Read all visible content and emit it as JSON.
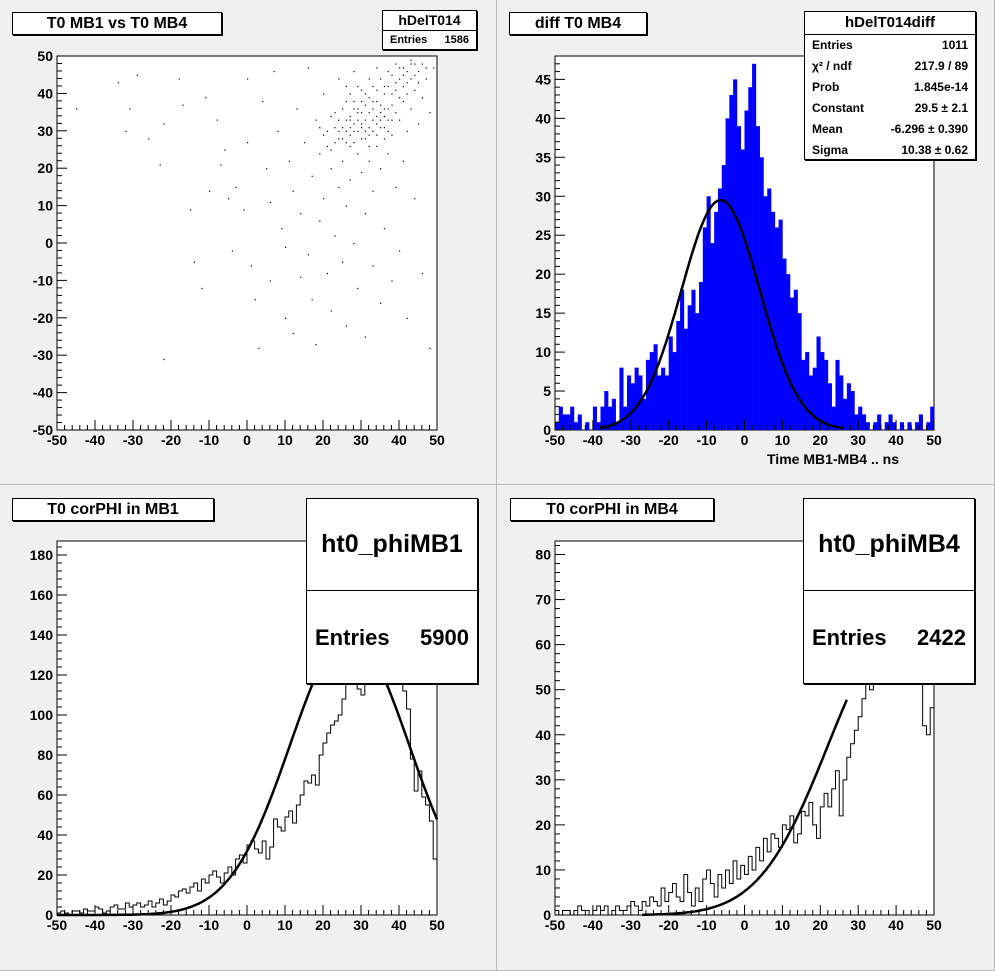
{
  "pads": [
    {
      "title": "T0 MB1 vs T0 MB4",
      "stats": {
        "name": "hDelT014",
        "rows": [
          {
            "label": "Entries",
            "value": "1586"
          }
        ]
      }
    },
    {
      "title": "diff T0 MB4",
      "xlabel": "Time MB1-MB4  ..  ns",
      "stats": {
        "name": "hDelT014diff",
        "rows": [
          {
            "label": "Entries",
            "value": "1011"
          },
          {
            "label": "χ² / ndf",
            "value": "217.9 / 89"
          },
          {
            "label": "Prob",
            "value": "1.845e-14"
          },
          {
            "label": "Constant",
            "value": "29.5 ± 2.1"
          },
          {
            "label": "Mean",
            "value": "-6.296 ± 0.390"
          },
          {
            "label": "Sigma",
            "value": "10.38 ± 0.62"
          }
        ]
      }
    },
    {
      "title": "T0 corPHI in MB1",
      "stats": {
        "name": "ht0_phiMB1",
        "rows": [
          {
            "label": "Entries",
            "value": "5900"
          }
        ]
      }
    },
    {
      "title": "T0 corPHI in MB4",
      "stats": {
        "name": "ht0_phiMB4",
        "rows": [
          {
            "label": "Entries",
            "value": "2422"
          }
        ]
      }
    }
  ],
  "colors": {
    "pad_bg": "#f0f0f0",
    "frame_bg": "#ffffff",
    "hist_fill": "#0000ff",
    "line": "#000000"
  },
  "chart_data": [
    {
      "type": "scatter",
      "title": "T0 MB1 vs T0 MB4",
      "xlim": [
        -50,
        50
      ],
      "ylim": [
        -50,
        50
      ],
      "xticks": [
        -50,
        -40,
        -30,
        -20,
        -10,
        0,
        10,
        20,
        30,
        40,
        50
      ],
      "yticks": [
        -50,
        -40,
        -30,
        -20,
        -10,
        0,
        10,
        20,
        30,
        40,
        50
      ],
      "entries": 1586,
      "points": [
        [
          -45,
          36
        ],
        [
          -34,
          43
        ],
        [
          -31,
          36
        ],
        [
          -32,
          30
        ],
        [
          -29,
          45
        ],
        [
          -26,
          28
        ],
        [
          -23,
          21
        ],
        [
          -22,
          32
        ],
        [
          -22,
          -31
        ],
        [
          -18,
          44
        ],
        [
          -17,
          37
        ],
        [
          -15,
          9
        ],
        [
          -14,
          -5
        ],
        [
          -12,
          -12
        ],
        [
          -11,
          39
        ],
        [
          -10,
          14
        ],
        [
          -8,
          33
        ],
        [
          -7,
          21
        ],
        [
          -6,
          25
        ],
        [
          -5,
          12
        ],
        [
          -4,
          -2
        ],
        [
          -3,
          15
        ],
        [
          -1,
          9
        ],
        [
          0,
          44
        ],
        [
          0,
          27
        ],
        [
          1,
          -6
        ],
        [
          2,
          -15
        ],
        [
          3,
          -28
        ],
        [
          4,
          38
        ],
        [
          5,
          20
        ],
        [
          6,
          11
        ],
        [
          6,
          -10
        ],
        [
          7,
          46
        ],
        [
          8,
          30
        ],
        [
          9,
          4
        ],
        [
          10,
          -1
        ],
        [
          10,
          -20
        ],
        [
          11,
          22
        ],
        [
          12,
          14
        ],
        [
          12,
          -24
        ],
        [
          13,
          36
        ],
        [
          14,
          8
        ],
        [
          14,
          -9
        ],
        [
          15,
          27
        ],
        [
          16,
          47
        ],
        [
          16,
          -3
        ],
        [
          17,
          18
        ],
        [
          17,
          -15
        ],
        [
          18,
          33
        ],
        [
          18,
          -27
        ],
        [
          19,
          6
        ],
        [
          19,
          24
        ],
        [
          20,
          40
        ],
        [
          20,
          12
        ],
        [
          21,
          -8
        ],
        [
          21,
          30
        ],
        [
          22,
          20
        ],
        [
          22,
          -18
        ],
        [
          23,
          35
        ],
        [
          23,
          2
        ],
        [
          24,
          44
        ],
        [
          24,
          28
        ],
        [
          24,
          15
        ],
        [
          25,
          -5
        ],
        [
          25,
          31
        ],
        [
          25,
          22
        ],
        [
          26,
          38
        ],
        [
          26,
          10
        ],
        [
          26,
          -22
        ],
        [
          27,
          33
        ],
        [
          27,
          26
        ],
        [
          27,
          17
        ],
        [
          28,
          46
        ],
        [
          28,
          30
        ],
        [
          28,
          0
        ],
        [
          29,
          36
        ],
        [
          29,
          24
        ],
        [
          29,
          -12
        ],
        [
          30,
          41
        ],
        [
          30,
          32
        ],
        [
          30,
          19
        ],
        [
          31,
          28
        ],
        [
          31,
          8
        ],
        [
          31,
          -25
        ],
        [
          32,
          44
        ],
        [
          32,
          35
        ],
        [
          32,
          22
        ],
        [
          33,
          30
        ],
        [
          33,
          14
        ],
        [
          33,
          -6
        ],
        [
          34,
          47
        ],
        [
          34,
          38
        ],
        [
          34,
          26
        ],
        [
          35,
          33
        ],
        [
          35,
          20
        ],
        [
          35,
          -16
        ],
        [
          36,
          42
        ],
        [
          36,
          31
        ],
        [
          36,
          4
        ],
        [
          37,
          46
        ],
        [
          37,
          36
        ],
        [
          37,
          24
        ],
        [
          38,
          40
        ],
        [
          38,
          29
        ],
        [
          38,
          -10
        ],
        [
          39,
          48
        ],
        [
          39,
          35
        ],
        [
          39,
          15
        ],
        [
          40,
          44
        ],
        [
          40,
          33
        ],
        [
          40,
          -2
        ],
        [
          41,
          47
        ],
        [
          41,
          38
        ],
        [
          41,
          22
        ],
        [
          42,
          43
        ],
        [
          42,
          30
        ],
        [
          42,
          -20
        ],
        [
          43,
          48
        ],
        [
          43,
          36
        ],
        [
          44,
          41
        ],
        [
          44,
          12
        ],
        [
          45,
          46
        ],
        [
          45,
          32
        ],
        [
          46,
          39
        ],
        [
          46,
          -8
        ],
        [
          47,
          44
        ],
        [
          48,
          35
        ],
        [
          48,
          -28
        ],
        [
          49,
          47
        ],
        [
          22,
          34
        ],
        [
          23,
          31
        ],
        [
          24,
          33
        ],
        [
          25,
          36
        ],
        [
          26,
          30
        ],
        [
          27,
          34
        ],
        [
          28,
          32
        ],
        [
          29,
          30
        ],
        [
          30,
          35
        ],
        [
          31,
          33
        ],
        [
          32,
          31
        ],
        [
          33,
          36
        ],
        [
          34,
          29
        ],
        [
          35,
          37
        ],
        [
          36,
          34
        ],
        [
          37,
          30
        ],
        [
          38,
          33
        ],
        [
          26,
          27
        ],
        [
          27,
          29
        ],
        [
          28,
          36
        ],
        [
          29,
          33
        ],
        [
          30,
          28
        ],
        [
          31,
          37
        ],
        [
          32,
          29
        ],
        [
          33,
          33
        ],
        [
          34,
          34
        ],
        [
          35,
          31
        ],
        [
          36,
          28
        ],
        [
          24,
          30
        ],
        [
          25,
          28
        ],
        [
          26,
          33
        ],
        [
          27,
          31
        ],
        [
          28,
          27
        ],
        [
          29,
          35
        ],
        [
          30,
          31
        ],
        [
          31,
          30
        ],
        [
          32,
          26
        ],
        [
          33,
          38
        ],
        [
          34,
          32
        ],
        [
          35,
          35
        ],
        [
          36,
          36
        ],
        [
          37,
          33
        ],
        [
          38,
          37
        ],
        [
          39,
          41
        ],
        [
          40,
          39
        ],
        [
          41,
          42
        ],
        [
          42,
          40
        ],
        [
          43,
          44
        ],
        [
          44,
          45
        ],
        [
          45,
          43
        ],
        [
          46,
          48
        ],
        [
          47,
          47
        ],
        [
          38,
          45
        ],
        [
          39,
          43
        ],
        [
          40,
          47
        ],
        [
          41,
          45
        ],
        [
          42,
          46
        ],
        [
          43,
          49
        ],
        [
          44,
          48
        ],
        [
          36,
          40
        ],
        [
          37,
          42
        ],
        [
          35,
          44
        ],
        [
          34,
          41
        ],
        [
          33,
          42
        ],
        [
          32,
          39
        ],
        [
          31,
          40
        ],
        [
          30,
          38
        ],
        [
          29,
          42
        ],
        [
          21,
          26
        ],
        [
          20,
          29
        ],
        [
          19,
          31
        ],
        [
          22,
          25
        ],
        [
          23,
          27
        ],
        [
          28,
          38
        ],
        [
          27,
          40
        ],
        [
          26,
          42
        ]
      ]
    },
    {
      "type": "histogram",
      "title": "diff T0 MB4",
      "xlabel": "Time MB1-MB4  ..  ns",
      "xlim": [
        -50,
        50
      ],
      "ylim": [
        0,
        48
      ],
      "xticks": [
        -50,
        -40,
        -30,
        -20,
        -10,
        0,
        10,
        20,
        30,
        40,
        50
      ],
      "yticks": [
        0,
        5,
        10,
        15,
        20,
        25,
        30,
        35,
        40,
        45
      ],
      "bin_width": 1,
      "values": [
        1,
        3,
        2,
        2,
        3,
        1,
        2,
        0,
        1,
        0,
        3,
        1,
        3,
        5,
        3,
        4,
        1,
        8,
        3,
        7,
        6,
        8,
        7,
        4,
        9,
        10,
        11,
        7,
        8,
        7,
        12,
        10,
        14,
        18,
        13,
        16,
        18,
        15,
        19,
        26,
        30,
        24,
        28,
        31,
        34,
        40,
        43,
        45,
        39,
        36,
        41,
        44,
        47,
        39,
        35,
        30,
        31,
        28,
        26,
        27,
        22,
        20,
        17,
        18,
        15,
        9,
        10,
        7,
        8,
        12,
        10,
        9,
        6,
        3,
        9,
        7,
        4,
        6,
        5,
        2,
        3,
        2,
        1,
        0,
        1,
        2,
        0,
        1,
        2,
        1,
        0,
        1,
        0,
        1,
        0,
        1,
        2,
        0,
        1,
        3
      ],
      "fit": {
        "function": "gaus",
        "constant": 29.5,
        "mean": -6.296,
        "sigma": 10.38,
        "range": [
          -38,
          26
        ]
      }
    },
    {
      "type": "histogram",
      "title": "T0 corPHI in MB1",
      "xlim": [
        -50,
        50
      ],
      "ylim": [
        0,
        187
      ],
      "xticks": [
        -50,
        -40,
        -30,
        -20,
        -10,
        0,
        10,
        20,
        30,
        40,
        50
      ],
      "yticks": [
        0,
        20,
        40,
        60,
        80,
        100,
        120,
        140,
        160,
        180
      ],
      "bin_width": 1,
      "values": [
        1,
        2,
        1,
        0,
        2,
        2,
        1,
        3,
        2,
        2,
        4,
        3,
        1,
        2,
        4,
        5,
        3,
        3,
        6,
        4,
        5,
        6,
        4,
        5,
        7,
        4,
        6,
        8,
        5,
        7,
        10,
        9,
        12,
        13,
        11,
        14,
        16,
        12,
        18,
        16,
        20,
        22,
        19,
        16,
        21,
        24,
        20,
        28,
        30,
        26,
        35,
        37,
        33,
        31,
        37,
        28,
        34,
        48,
        44,
        42,
        49,
        52,
        46,
        55,
        60,
        67,
        66,
        70,
        65,
        80,
        86,
        91,
        95,
        97,
        100,
        108,
        120,
        118,
        116,
        113,
        110,
        119,
        120,
        123,
        120,
        119,
        116,
        118,
        120,
        117,
        119,
        112,
        103,
        78,
        62,
        72,
        59,
        55,
        47,
        28
      ],
      "fit": {
        "function": "gaus",
        "constant": 140,
        "mean": 27,
        "sigma": 15.7,
        "range": [
          -50,
          50
        ]
      }
    },
    {
      "type": "histogram",
      "title": "T0 corPHI in MB4",
      "xlim": [
        -50,
        50
      ],
      "ylim": [
        0,
        83
      ],
      "xticks": [
        -50,
        -40,
        -30,
        -20,
        -10,
        0,
        10,
        20,
        30,
        40,
        50
      ],
      "yticks": [
        0,
        10,
        20,
        30,
        40,
        50,
        60,
        70,
        80
      ],
      "bin_width": 1,
      "values": [
        1,
        0,
        1,
        1,
        0,
        1,
        2,
        1,
        1,
        0,
        1,
        2,
        1,
        2,
        0,
        1,
        2,
        1,
        1,
        2,
        3,
        2,
        1,
        3,
        2,
        4,
        3,
        2,
        6,
        3,
        5,
        7,
        4,
        3,
        9,
        5,
        2,
        6,
        3,
        8,
        10,
        7,
        4,
        9,
        6,
        10,
        7,
        12,
        8,
        11,
        9,
        13,
        10,
        15,
        12,
        17,
        14,
        18,
        17,
        15,
        20,
        19,
        22,
        16,
        18,
        23,
        22,
        25,
        20,
        17,
        24,
        27,
        24,
        28,
        32,
        22,
        30,
        35,
        38,
        41,
        44,
        48,
        52,
        50,
        53,
        56,
        55,
        58,
        60,
        62,
        63,
        62,
        61,
        60,
        58,
        57,
        59,
        42,
        40,
        46
      ],
      "fit": {
        "function": "gaus",
        "constant": 62,
        "mean": 40,
        "sigma": 18,
        "range": [
          -27,
          27
        ]
      }
    }
  ]
}
